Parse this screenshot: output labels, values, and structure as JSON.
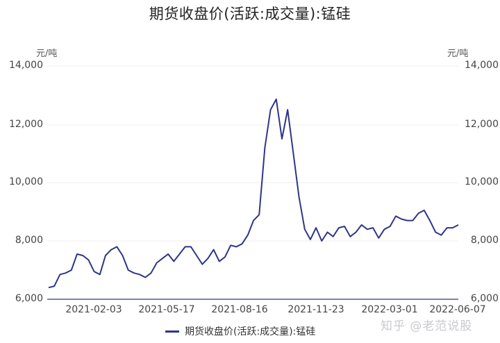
{
  "title": "期货收盘价(活跃:成交量):锰硅",
  "units": {
    "left": "元/吨",
    "right": "元/吨"
  },
  "y_ticks": [
    "14,000",
    "12,000",
    "10,000",
    "8,000",
    "6,000"
  ],
  "x_ticks": [
    "2021-02-03",
    "2021-05-17",
    "2021-08-16",
    "2021-11-23",
    "2022-03-01",
    "2022-06-07"
  ],
  "legend": {
    "label": "期货收盘价(活跃:成交量):锰硅",
    "color": "#2e3586"
  },
  "watermark": "知乎 @老范说股",
  "chart_data": {
    "type": "line",
    "title": "期货收盘价(活跃:成交量):锰硅",
    "xlabel": "",
    "ylabel": "元/吨",
    "ylim": [
      6000,
      14000
    ],
    "y_ticks": [
      6000,
      8000,
      10000,
      12000,
      14000
    ],
    "x_tick_labels": [
      "2021-02-03",
      "2021-05-17",
      "2021-08-16",
      "2021-11-23",
      "2022-03-01",
      "2022-06-07"
    ],
    "grid": true,
    "legend_position": "bottom",
    "series": [
      {
        "name": "期货收盘价(活跃:成交量):锰硅",
        "color": "#2e3586",
        "x": [
          "2020-12-31",
          "2021-01-06",
          "2021-01-12",
          "2021-01-18",
          "2021-01-25",
          "2021-02-01",
          "2021-02-08",
          "2021-02-18",
          "2021-02-25",
          "2021-03-04",
          "2021-03-11",
          "2021-03-18",
          "2021-03-25",
          "2021-04-01",
          "2021-04-08",
          "2021-04-15",
          "2021-04-22",
          "2021-04-29",
          "2021-05-10",
          "2021-05-17",
          "2021-05-24",
          "2021-05-31",
          "2021-06-07",
          "2021-06-15",
          "2021-06-22",
          "2021-06-29",
          "2021-07-06",
          "2021-07-13",
          "2021-07-20",
          "2021-07-27",
          "2021-08-03",
          "2021-08-10",
          "2021-08-16",
          "2021-08-23",
          "2021-08-30",
          "2021-09-06",
          "2021-09-13",
          "2021-09-22",
          "2021-09-29",
          "2021-10-11",
          "2021-10-18",
          "2021-10-25",
          "2021-11-01",
          "2021-11-08",
          "2021-11-15",
          "2021-11-23",
          "2021-11-30",
          "2021-12-07",
          "2021-12-14",
          "2021-12-21",
          "2021-12-28",
          "2022-01-05",
          "2022-01-12",
          "2022-01-19",
          "2022-01-26",
          "2022-02-09",
          "2022-02-16",
          "2022-02-23",
          "2022-03-01",
          "2022-03-08",
          "2022-03-15",
          "2022-03-22",
          "2022-03-29",
          "2022-04-06",
          "2022-04-13",
          "2022-04-20",
          "2022-04-27",
          "2022-05-06",
          "2022-05-13",
          "2022-05-20",
          "2022-05-27",
          "2022-06-02",
          "2022-06-07"
        ],
        "values": [
          6400,
          6450,
          6850,
          6900,
          7000,
          7550,
          7500,
          7350,
          6950,
          6850,
          7500,
          7700,
          7800,
          7500,
          7000,
          6900,
          6850,
          6750,
          6900,
          7250,
          7400,
          7550,
          7300,
          7550,
          7800,
          7800,
          7500,
          7200,
          7400,
          7700,
          7300,
          7450,
          7850,
          7800,
          7900,
          8200,
          8700,
          8900,
          11200,
          12500,
          12860,
          11500,
          12500,
          11000,
          9500,
          8400,
          8050,
          8450,
          8000,
          8300,
          8150,
          8450,
          8500,
          8150,
          8300,
          8550,
          8400,
          8450,
          8100,
          8400,
          8500,
          8850,
          8750,
          8700,
          8700,
          8950,
          9050,
          8700,
          8300,
          8200,
          8450,
          8450,
          8550
        ]
      }
    ]
  }
}
